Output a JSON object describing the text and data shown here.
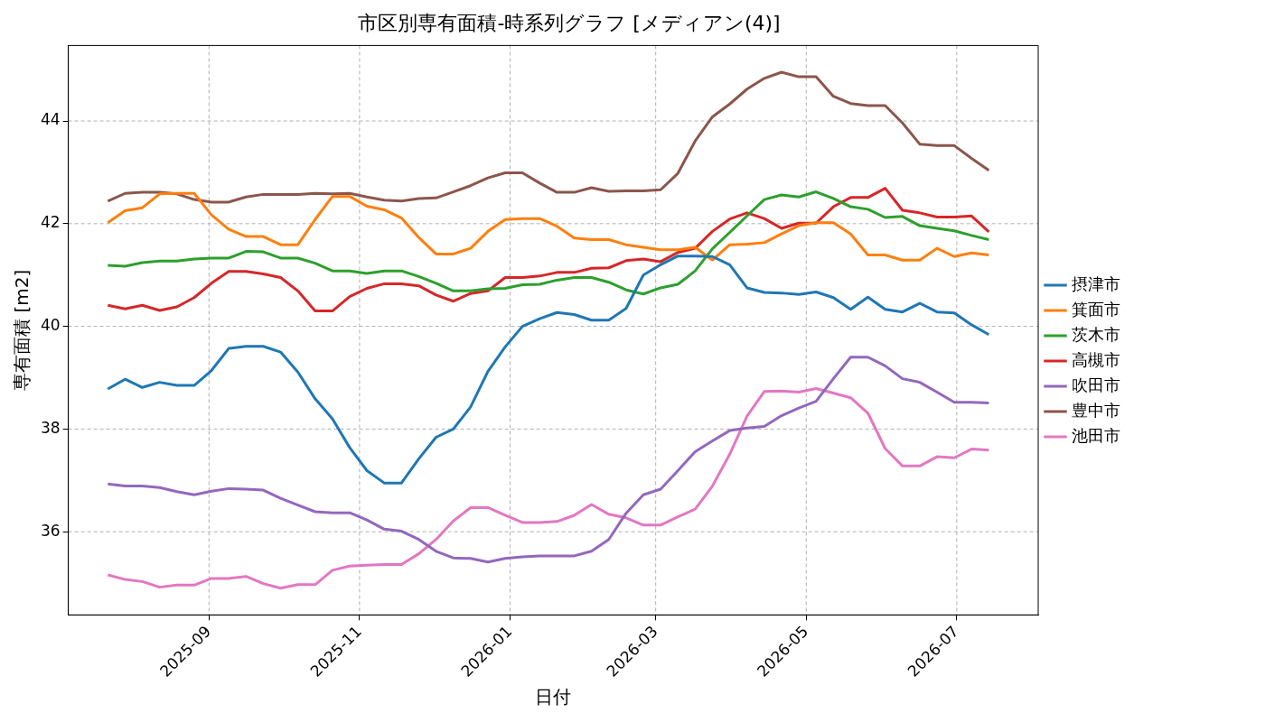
{
  "chart_data": {
    "type": "line",
    "title": "市区別専有面積-時系列グラフ [メディアン(4)]",
    "xlabel": "日付",
    "ylabel": "専有面積 [m2]",
    "x": [
      "2025-07-22",
      "2025-07-29",
      "2025-08-05",
      "2025-08-12",
      "2025-08-19",
      "2025-08-26",
      "2025-09-02",
      "2025-09-09",
      "2025-09-16",
      "2025-09-23",
      "2025-09-30",
      "2025-10-07",
      "2025-10-14",
      "2025-10-21",
      "2025-10-28",
      "2025-11-04",
      "2025-11-11",
      "2025-11-18",
      "2025-11-25",
      "2025-12-02",
      "2025-12-09",
      "2025-12-16",
      "2025-12-23",
      "2025-12-30",
      "2026-01-06",
      "2026-01-13",
      "2026-01-20",
      "2026-01-27",
      "2026-02-03",
      "2026-02-10",
      "2026-02-17",
      "2026-02-24",
      "2026-03-03",
      "2026-03-10",
      "2026-03-17",
      "2026-03-24",
      "2026-03-31",
      "2026-04-07",
      "2026-04-14",
      "2026-04-21",
      "2026-04-28",
      "2026-05-05",
      "2026-05-12",
      "2026-05-19",
      "2026-05-26",
      "2026-06-02",
      "2026-06-09",
      "2026-06-16",
      "2026-06-23",
      "2026-06-30",
      "2026-07-07",
      "2026-07-14"
    ],
    "series": [
      {
        "name": "摂津市",
        "color": "#1f77b4",
        "values": [
          38.78,
          38.97,
          38.81,
          38.91,
          38.85,
          38.85,
          39.14,
          39.57,
          39.61,
          39.61,
          39.5,
          39.11,
          38.59,
          38.2,
          37.64,
          37.19,
          36.95,
          36.95,
          37.42,
          37.84,
          38.0,
          38.43,
          39.12,
          39.6,
          40.0,
          40.15,
          40.27,
          40.23,
          40.12,
          40.12,
          40.35,
          41.0,
          41.2,
          41.37,
          41.37,
          41.36,
          41.2,
          40.75,
          40.66,
          40.65,
          40.62,
          40.67,
          40.56,
          40.33,
          40.57,
          40.33,
          40.28,
          40.45,
          40.28,
          40.26,
          40.03,
          39.84
        ]
      },
      {
        "name": "箕面市",
        "color": "#ff7f0e",
        "values": [
          42.02,
          42.25,
          42.31,
          42.58,
          42.59,
          42.59,
          42.17,
          41.89,
          41.75,
          41.75,
          41.59,
          41.59,
          42.08,
          42.53,
          42.53,
          42.34,
          42.27,
          42.11,
          41.73,
          41.41,
          41.41,
          41.52,
          41.85,
          42.08,
          42.1,
          42.1,
          41.95,
          41.72,
          41.69,
          41.69,
          41.59,
          41.54,
          41.49,
          41.49,
          41.54,
          41.29,
          41.59,
          41.6,
          41.63,
          41.8,
          41.96,
          42.02,
          42.02,
          41.8,
          41.39,
          41.39,
          41.29,
          41.29,
          41.52,
          41.36,
          41.43,
          41.39
        ]
      },
      {
        "name": "茨木市",
        "color": "#2ca02c",
        "values": [
          41.19,
          41.17,
          41.24,
          41.27,
          41.27,
          41.31,
          41.33,
          41.33,
          41.46,
          41.45,
          41.33,
          41.33,
          41.23,
          41.08,
          41.08,
          41.03,
          41.08,
          41.08,
          40.97,
          40.84,
          40.69,
          40.69,
          40.73,
          40.74,
          40.81,
          40.82,
          40.9,
          40.95,
          40.95,
          40.86,
          40.71,
          40.63,
          40.75,
          40.82,
          41.08,
          41.51,
          41.83,
          42.15,
          42.47,
          42.56,
          42.52,
          42.62,
          42.49,
          42.33,
          42.28,
          42.12,
          42.14,
          41.96,
          41.91,
          41.86,
          41.77,
          41.69
        ]
      },
      {
        "name": "高槻市",
        "color": "#d62728",
        "values": [
          40.41,
          40.34,
          40.41,
          40.31,
          40.38,
          40.56,
          40.84,
          41.07,
          41.07,
          41.02,
          40.95,
          40.69,
          40.3,
          40.3,
          40.58,
          40.74,
          40.83,
          40.83,
          40.79,
          40.61,
          40.49,
          40.64,
          40.69,
          40.95,
          40.95,
          40.98,
          41.05,
          41.05,
          41.13,
          41.14,
          41.28,
          41.31,
          41.26,
          41.44,
          41.52,
          41.85,
          42.09,
          42.21,
          42.1,
          41.91,
          42.01,
          42.01,
          42.33,
          42.51,
          42.51,
          42.69,
          42.26,
          42.21,
          42.13,
          42.13,
          42.15,
          41.84
        ]
      },
      {
        "name": "吹田市",
        "color": "#9467bd",
        "values": [
          36.93,
          36.89,
          36.89,
          36.86,
          36.78,
          36.72,
          36.79,
          36.84,
          36.83,
          36.81,
          36.65,
          36.52,
          36.39,
          36.37,
          36.37,
          36.23,
          36.05,
          36.01,
          35.85,
          35.62,
          35.49,
          35.48,
          35.41,
          35.48,
          35.51,
          35.53,
          35.53,
          35.53,
          35.62,
          35.85,
          36.36,
          36.72,
          36.83,
          37.19,
          37.56,
          37.77,
          37.97,
          38.02,
          38.05,
          38.26,
          38.41,
          38.54,
          38.98,
          39.4,
          39.4,
          39.23,
          38.98,
          38.91,
          38.72,
          38.52,
          38.52,
          38.51
        ]
      },
      {
        "name": "豊中市",
        "color": "#8c564b",
        "values": [
          42.44,
          42.59,
          42.61,
          42.61,
          42.58,
          42.47,
          42.42,
          42.42,
          42.52,
          42.57,
          42.57,
          42.57,
          42.59,
          42.58,
          42.59,
          42.52,
          42.46,
          42.44,
          42.49,
          42.5,
          42.62,
          42.74,
          42.89,
          42.99,
          42.99,
          42.79,
          42.61,
          42.61,
          42.7,
          42.63,
          42.64,
          42.64,
          42.66,
          42.98,
          43.61,
          44.08,
          44.33,
          44.62,
          44.83,
          44.95,
          44.86,
          44.86,
          44.48,
          44.34,
          44.3,
          44.3,
          43.96,
          43.55,
          43.52,
          43.52,
          43.27,
          43.04
        ]
      },
      {
        "name": "池田市",
        "color": "#e377c2",
        "values": [
          35.16,
          35.07,
          35.03,
          34.92,
          34.96,
          34.96,
          35.09,
          35.09,
          35.13,
          34.99,
          34.9,
          34.97,
          34.97,
          35.25,
          35.33,
          35.35,
          35.36,
          35.36,
          35.57,
          35.85,
          36.21,
          36.47,
          36.47,
          36.32,
          36.18,
          36.18,
          36.2,
          36.32,
          36.53,
          36.34,
          36.27,
          36.13,
          36.13,
          36.29,
          36.44,
          36.89,
          37.51,
          38.25,
          38.73,
          38.74,
          38.72,
          38.79,
          38.7,
          38.61,
          38.31,
          37.62,
          37.28,
          37.28,
          37.46,
          37.44,
          37.61,
          37.59
        ]
      }
    ],
    "xlim": [
      "2025-07-06",
      "2026-08-03"
    ],
    "ylim": [
      34.38,
      45.47
    ],
    "xticks": [
      "2025-09",
      "2025-11",
      "2026-01",
      "2026-03",
      "2026-05",
      "2026-07"
    ],
    "yticks": [
      36,
      38,
      40,
      42,
      44
    ],
    "grid": true,
    "legend": "right",
    "marker": "none",
    "line_style": "solid"
  }
}
